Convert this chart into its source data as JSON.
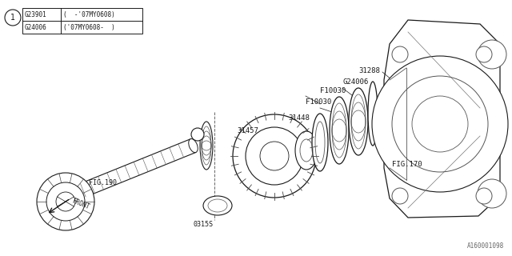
{
  "bg_color": "#ffffff",
  "line_color": "#1a1a1a",
  "diagram_number": "A160001098",
  "legend_rows": [
    [
      "G23901",
      "(  -'07MY0608)"
    ],
    [
      "G24006",
      "('07MY0608-  )"
    ]
  ]
}
